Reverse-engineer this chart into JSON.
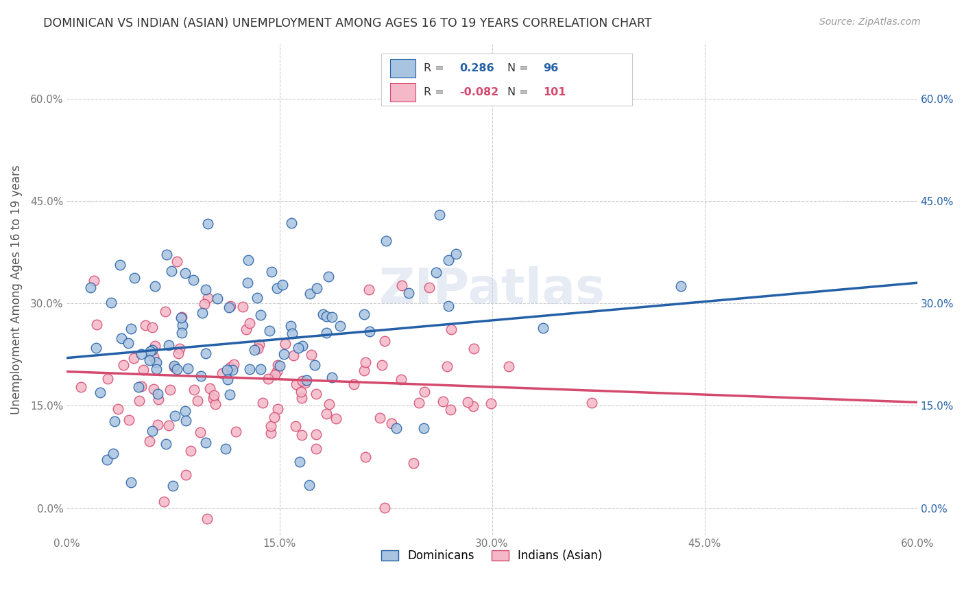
{
  "title": "DOMINICAN VS INDIAN (ASIAN) UNEMPLOYMENT AMONG AGES 16 TO 19 YEARS CORRELATION CHART",
  "source": "Source: ZipAtlas.com",
  "ylabel": "Unemployment Among Ages 16 to 19 years",
  "xlim": [
    0.0,
    0.6
  ],
  "ylim": [
    -0.04,
    0.68
  ],
  "dominican_R": 0.286,
  "dominican_N": 96,
  "indian_R": -0.082,
  "indian_N": 101,
  "dominican_color": "#a8c4e0",
  "dominican_line_color": "#2460a7",
  "indian_color": "#f4b8c8",
  "indian_line_color": "#d44a6e",
  "background_color": "#ffffff",
  "grid_color": "#cccccc",
  "title_color": "#333333",
  "watermark": "ZIPatlas",
  "ytick_values": [
    0.0,
    0.15,
    0.3,
    0.45,
    0.6
  ],
  "ytick_labels": [
    "0.0%",
    "15.0%",
    "30.0%",
    "45.0%",
    "60.0%"
  ],
  "xtick_values": [
    0.0,
    0.15,
    0.3,
    0.45,
    0.6
  ],
  "xtick_labels": [
    "0.0%",
    "15.0%",
    "30.0%",
    "45.0%",
    "60.0%"
  ],
  "dom_trend_start": 0.22,
  "dom_trend_end": 0.33,
  "ind_trend_start": 0.2,
  "ind_trend_end": 0.155
}
